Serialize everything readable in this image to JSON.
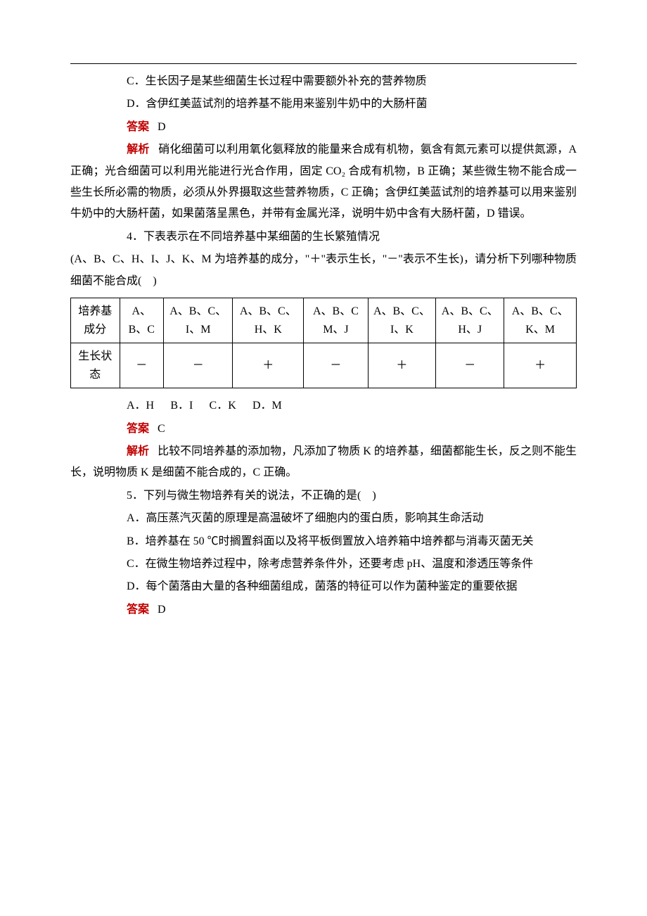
{
  "colors": {
    "text": "#000000",
    "accent": "#c00000",
    "border": "#000000",
    "background": "#ffffff"
  },
  "typography": {
    "body_font": "SimSun",
    "body_size_pt": 12,
    "line_height": 1.9
  },
  "q3": {
    "option_c": "C．生长因子是某些细菌生长过程中需要额外补充的营养物质",
    "option_d": "D．含伊红美蓝试剂的培养基不能用来鉴别牛奶中的大肠杆菌",
    "answer_label": "答案",
    "answer_value": "D",
    "analysis_label": "解析",
    "analysis_text": "硝化细菌可以利用氧化氨释放的能量来合成有机物，氨含有氮元素可以提供氮源，A 正确；光合细菌可以利用光能进行光合作用，固定 CO₂ 合成有机物，B 正确；某些微生物不能合成一些生长所必需的物质，必须从外界摄取这些营养物质，C 正确；含伊红美蓝试剂的培养基可以用来鉴别牛奶中的大肠杆菌，如果菌落呈黑色，并带有金属光泽，说明牛奶中含有大肠杆菌，D 错误。"
  },
  "q4": {
    "stem_line1": "4．下表表示在不同培养基中某细菌的生长繁殖情况",
    "stem_line2": "(A、B、C、H、I、J、K、M 为培养基的成分，\"＋\"表示生长，\"－\"表示不生长)，请分析下列哪种物质细菌不能合成(　)",
    "table": {
      "row_headers": [
        "培养基成分",
        "生长状态"
      ],
      "columns": [
        "A、B、C",
        "A、B、C、I、M",
        "A、B、C、H、K",
        "A、B、C M、J",
        "A、B、C、I、K",
        "A、B、C、H、J",
        "A、B、C、K、M"
      ],
      "growth": [
        "－",
        "－",
        "＋",
        "－",
        "＋",
        "－",
        "＋"
      ],
      "col_widths_pct": [
        11,
        12,
        13,
        13,
        11,
        13,
        13,
        14
      ],
      "border_color": "#000000"
    },
    "options": {
      "A": "A．H",
      "B": "B．I",
      "C": "C．K",
      "D": "D．M"
    },
    "answer_label": "答案",
    "answer_value": "C",
    "analysis_label": "解析",
    "analysis_text": "比较不同培养基的添加物，凡添加了物质 K 的培养基，细菌都能生长，反之则不能生长，说明物质 K 是细菌不能合成的，C 正确。"
  },
  "q5": {
    "stem": "5．下列与微生物培养有关的说法，不正确的是(　)",
    "option_a": "A．高压蒸汽灭菌的原理是高温破坏了细胞内的蛋白质，影响其生命活动",
    "option_b": "B．培养基在 50 ℃时搁置斜面以及将平板倒置放入培养箱中培养都与消毒灭菌无关",
    "option_c": "C．在微生物培养过程中，除考虑营养条件外，还要考虑 pH、温度和渗透压等条件",
    "option_d": "D．每个菌落由大量的各种细菌组成，菌落的特征可以作为菌种鉴定的重要依据",
    "answer_label": "答案",
    "answer_value": "D"
  }
}
